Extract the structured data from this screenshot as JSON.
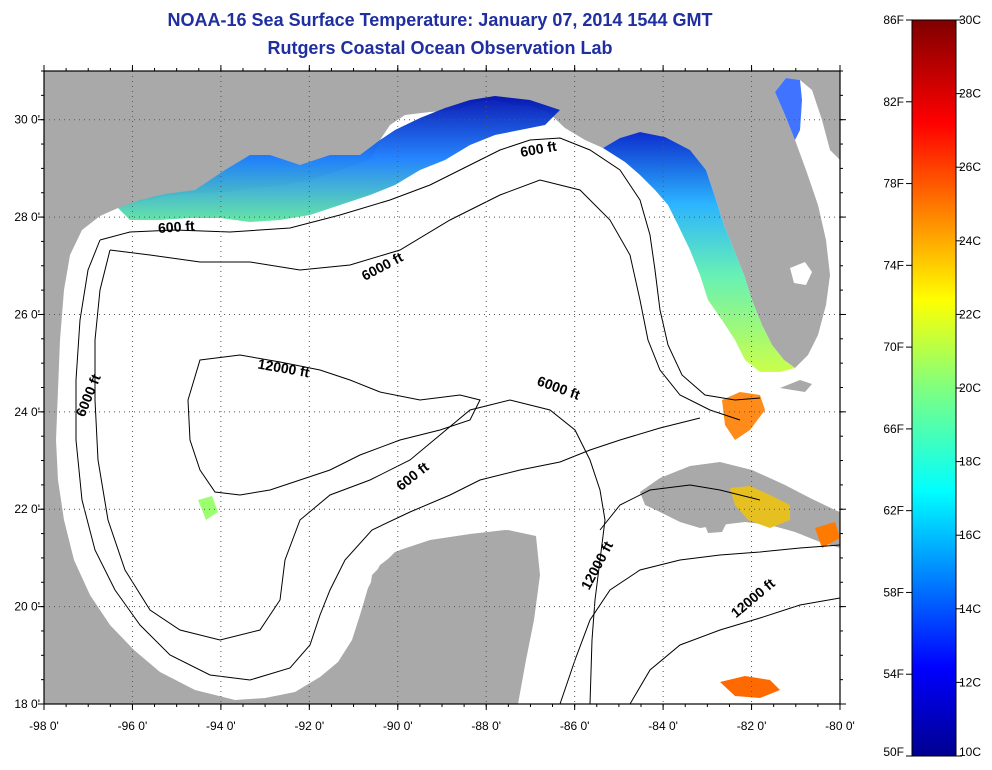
{
  "title": "NOAA-16 Sea Surface Temperature:  January 07, 2014 1544 GMT",
  "subtitle": "Rutgers Coastal Ocean Observation Lab",
  "map": {
    "lon_range": [
      -98,
      -80
    ],
    "lat_range": [
      18,
      31
    ],
    "x_ticks": [
      "-98 0'",
      "-96 0'",
      "-94 0'",
      "-92 0'",
      "-90 0'",
      "-88 0'",
      "-86 0'",
      "-84 0'",
      "-82 0'",
      "-80 0'"
    ],
    "y_ticks": [
      "18 0'",
      "20 0'",
      "22 0'",
      "24 0'",
      "26 0'",
      "28 0'",
      "30 0'"
    ],
    "contour_labels": [
      {
        "text": "600 ft",
        "lon": -95.0,
        "lat": 27.7,
        "angle": -4
      },
      {
        "text": "600 ft",
        "lon": -86.8,
        "lat": 29.3,
        "angle": -10
      },
      {
        "text": "600 ft",
        "lon": -89.6,
        "lat": 22.6,
        "angle": -38
      },
      {
        "text": "6000 ft",
        "lon": -90.3,
        "lat": 26.9,
        "angle": -28
      },
      {
        "text": "6000 ft",
        "lon": -96.9,
        "lat": 24.3,
        "angle": -68
      },
      {
        "text": "6000 ft",
        "lon": -86.4,
        "lat": 24.4,
        "angle": 20
      },
      {
        "text": "12000 ft",
        "lon": -92.6,
        "lat": 24.8,
        "angle": 10
      },
      {
        "text": "12000 ft",
        "lon": -85.4,
        "lat": 20.8,
        "angle": -62
      },
      {
        "text": "12000 ft",
        "lon": -81.9,
        "lat": 20.1,
        "angle": -40
      }
    ],
    "colors": {
      "land": "#a9a9a9",
      "water": "#ffffff",
      "contour": "#000000"
    }
  },
  "colorbar": {
    "left_labels": [
      "86F",
      "82F",
      "78F",
      "74F",
      "70F",
      "66F",
      "62F",
      "58F",
      "54F",
      "50F"
    ],
    "right_labels": [
      "30C",
      "28C",
      "26C",
      "24C",
      "22C",
      "20C",
      "18C",
      "16C",
      "14C",
      "12C",
      "10C"
    ],
    "colormap": "jet",
    "range_c": [
      10,
      30
    ]
  }
}
